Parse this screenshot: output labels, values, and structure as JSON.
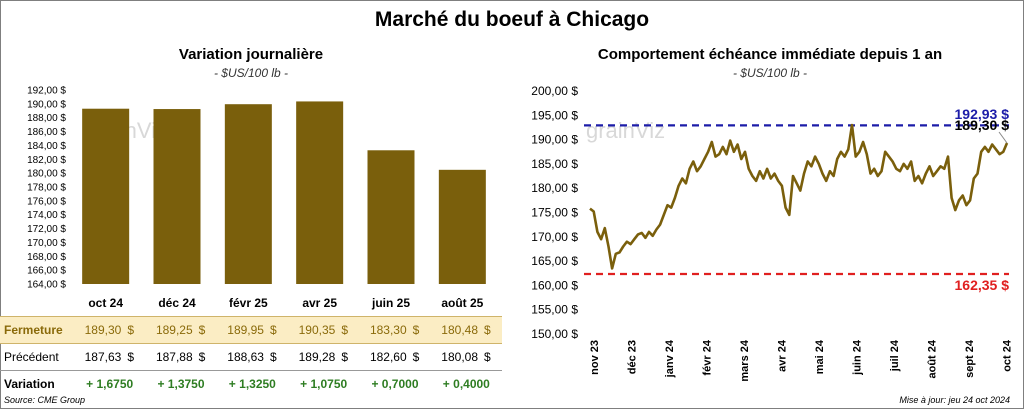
{
  "title": "Marché du boeuf à Chicago",
  "left": {
    "title": "Variation journalière",
    "unit": "- $US/100 lb -",
    "rows": {
      "fermeture": {
        "label": "Fermeture",
        "values": [
          "189,30",
          "189,25",
          "189,95",
          "190,35",
          "183,30",
          "180,48"
        ],
        "currency": "$"
      },
      "precedent": {
        "label": "Précédent",
        "values": [
          "187,63",
          "187,88",
          "188,63",
          "189,28",
          "182,60",
          "180,08"
        ],
        "currency": "$"
      },
      "variation": {
        "label": "Variation",
        "values": [
          "+ 1,6750",
          "+ 1,3750",
          "+ 1,3250",
          "+ 1,0750",
          "+ 0,7000",
          "+ 0,4000"
        ]
      }
    }
  },
  "right": {
    "title": "Comportement  échéance immédiate depuis 1 an",
    "unit": "- $US/100 lb -",
    "max_label": "192,93 $",
    "last_label": "189,30 $",
    "min_label": "162,35 $"
  },
  "watermark": "grainViz",
  "source": "Source: CME Group",
  "updated": "Mise à jour: jeu 24 oct 2024",
  "colors": {
    "bar": "#7a5f0c",
    "line": "#7a5f0c",
    "max": "#1c1ca8",
    "min": "#e02020",
    "variation": "#2e7d22",
    "fermeture_bg": "#fbedc4"
  },
  "chart_data": [
    {
      "type": "bar",
      "title": "Variation journalière",
      "categories": [
        "oct 24",
        "déc 24",
        "févr 25",
        "avr 25",
        "juin 25",
        "août 25"
      ],
      "values": [
        189.3,
        189.25,
        189.95,
        190.35,
        183.3,
        180.48
      ],
      "ylim": [
        164,
        192
      ],
      "yticks": [
        "192,00 $",
        "190,00 $",
        "188,00 $",
        "186,00 $",
        "184,00 $",
        "182,00 $",
        "180,00 $",
        "178,00 $",
        "176,00 $",
        "174,00 $",
        "172,00 $",
        "170,00 $",
        "168,00 $",
        "166,00 $",
        "164,00 $"
      ],
      "grid": false
    },
    {
      "type": "line",
      "title": "Comportement  échéance immédiate depuis 1 an",
      "ylim": [
        150,
        200
      ],
      "yticks": [
        "200,00 $",
        "195,00 $",
        "190,00 $",
        "185,00 $",
        "180,00 $",
        "175,00 $",
        "170,00 $",
        "165,00 $",
        "160,00 $",
        "155,00 $",
        "150,00 $"
      ],
      "xticks": [
        "nov 23",
        "déc 23",
        "janv 24",
        "févr 24",
        "mars 24",
        "avr 24",
        "mai 24",
        "juin 24",
        "juil 24",
        "août 24",
        "sept 24",
        "oct 24"
      ],
      "series": [
        {
          "values": [
            175.8,
            175.2,
            171.0,
            169.5,
            171.8,
            168.0,
            163.5,
            166.5,
            166.8,
            168.0,
            169.0,
            168.5,
            169.5,
            170.5,
            170.8,
            169.8,
            171.0,
            170.2,
            171.5,
            172.5,
            174.5,
            176.5,
            176.0,
            178.0,
            180.5,
            182.0,
            181.0,
            184.0,
            185.5,
            183.5,
            184.5,
            186.0,
            187.5,
            189.5,
            186.5,
            187.0,
            188.5,
            187.0,
            189.8,
            187.5,
            189.0,
            186.0,
            187.5,
            184.0,
            182.5,
            181.5,
            183.5,
            182.0,
            184.0,
            182.0,
            183.0,
            181.5,
            180.5,
            176.0,
            174.5,
            182.5,
            181.0,
            179.5,
            183.0,
            185.5,
            184.5,
            186.5,
            185.0,
            183.0,
            181.5,
            183.5,
            182.5,
            186.0,
            187.5,
            186.5,
            188.0,
            193.0,
            186.5,
            187.5,
            189.5,
            187.0,
            183.0,
            184.0,
            182.5,
            183.5,
            187.5,
            186.5,
            185.5,
            184.0,
            183.5,
            185.0,
            184.0,
            185.5,
            181.5,
            182.5,
            181.0,
            183.0,
            184.5,
            182.5,
            183.5,
            184.5,
            184.0,
            186.5,
            178.0,
            175.5,
            177.5,
            178.5,
            176.5,
            177.5,
            182.0,
            183.0,
            187.5,
            188.5,
            187.5,
            189.0,
            188.0,
            187.0,
            187.5,
            189.3
          ]
        }
      ],
      "hlines": [
        {
          "value": 192.93,
          "label": "192,93 $",
          "color": "#1c1ca8"
        },
        {
          "value": 162.35,
          "label": "162,35 $",
          "color": "#e02020"
        }
      ],
      "grid": false
    }
  ]
}
